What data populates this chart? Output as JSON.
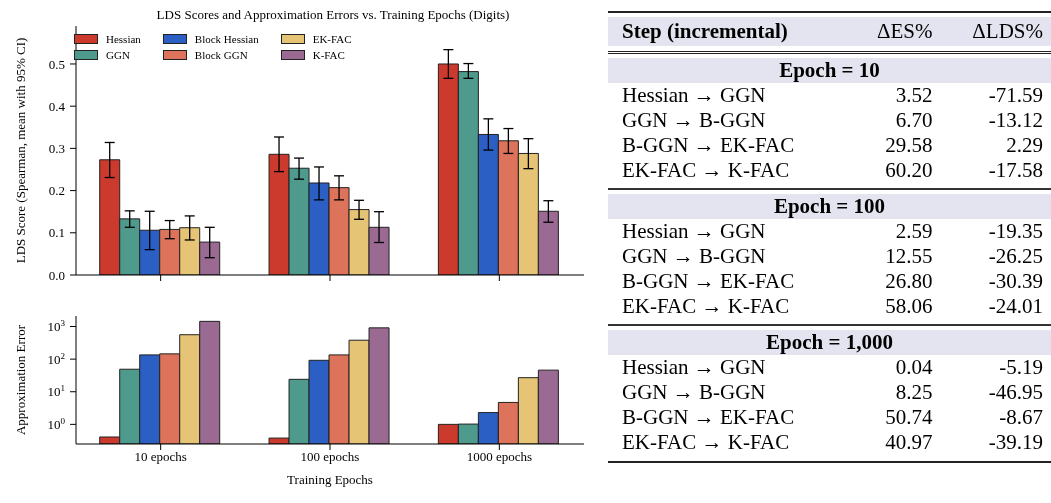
{
  "chart_data": [
    {
      "type": "bar",
      "title": "LDS Scores and Approximation Errors vs. Training Epochs (Digits)",
      "ylabel": "LDS Score (Spearman, mean with 95% CI)",
      "categories": [
        null,
        null,
        null
      ],
      "tick_labels": "y",
      "legend": "top left",
      "ylim": [
        0,
        0.59
      ],
      "yticks": [
        {
          "value": 0,
          "label": "0.0"
        },
        0.1,
        0.2,
        0.3,
        0.4,
        0.5
      ],
      "series": [
        {
          "name": "Hessian",
          "color": "#cc3a2d",
          "values": [
            0.273,
            0.286,
            0.5
          ],
          "errors": [
            [
              0.231,
              0.314
            ],
            [
              0.245,
              0.327
            ],
            [
              0.466,
              0.534
            ]
          ]
        },
        {
          "name": "GGN",
          "color": "#4e9a8c",
          "values": [
            0.133,
            0.253,
            0.482
          ],
          "errors": [
            [
              0.113,
              0.152
            ],
            [
              0.227,
              0.277
            ],
            [
              0.466,
              0.501
            ]
          ]
        },
        {
          "name": "Block Hessian",
          "color": "#2b5fc4",
          "values": [
            0.106,
            0.218,
            0.333
          ],
          "errors": [
            [
              0.06,
              0.151
            ],
            [
              0.178,
              0.256
            ],
            [
              0.296,
              0.37
            ]
          ]
        },
        {
          "name": "Block GGN",
          "color": "#dd735a",
          "values": [
            0.108,
            0.207,
            0.318
          ],
          "errors": [
            [
              0.086,
              0.129
            ],
            [
              0.178,
              0.235
            ],
            [
              0.288,
              0.347
            ]
          ]
        },
        {
          "name": "EK-FAC",
          "color": "#e6c476",
          "values": [
            0.112,
            0.155,
            0.288
          ],
          "errors": [
            [
              0.083,
              0.14
            ],
            [
              0.132,
              0.177
            ],
            [
              0.252,
              0.323
            ]
          ]
        },
        {
          "name": "K-FAC",
          "color": "#9a6a93",
          "values": [
            0.078,
            0.113,
            0.151
          ],
          "errors": [
            [
              0.041,
              0.113
            ],
            [
              0.077,
              0.15
            ],
            [
              0.125,
              0.176
            ]
          ]
        }
      ]
    },
    {
      "type": "bar",
      "ylabel": "Approximation Error",
      "xlabel": "Training Epochs",
      "categories": [
        "10 epochs",
        "100 epochs",
        "1000 epochs"
      ],
      "log": true,
      "ylim": [
        0.25,
        2100
      ],
      "yticks": [
        {
          "value": 1,
          "label": "10$^{0}$"
        },
        {
          "value": 10,
          "label": "10$^{1}$"
        },
        {
          "value": 100,
          "label": "10$^{2}$"
        },
        {
          "value": 1000,
          "label": "10$^{3}$"
        }
      ],
      "series": [
        {
          "color": "#cc3a2d",
          "values": [
            0.41,
            0.38,
            1.0
          ]
        },
        {
          "color": "#4e9a8c",
          "values": [
            49,
            24,
            1.02
          ]
        },
        {
          "color": "#2b5fc4",
          "values": [
            135,
            92,
            2.3
          ]
        },
        {
          "color": "#dd735a",
          "values": [
            145,
            135,
            4.7
          ]
        },
        {
          "color": "#e6c476",
          "values": [
            560,
            380,
            27
          ]
        },
        {
          "color": "#9a6a93",
          "values": [
            1440,
            910,
            46
          ]
        }
      ]
    },
    {
      "type": "other",
      "annotations": [
        "Step (incremental)",
        "ΔES%",
        "ΔLDS%",
        "Epoch = 10",
        "Hessian → GGN",
        "3.52",
        "-71.59",
        "GGN → B-GGN",
        "6.70",
        "-13.12",
        "B-GGN → EK-FAC",
        "29.58",
        "2.29",
        "EK-FAC → K-FAC",
        "60.20",
        "-17.58",
        "Epoch = 100",
        "Hessian → GGN",
        "2.59",
        "-19.35",
        "GGN → B-GGN",
        "12.55",
        "-26.25",
        "B-GGN → EK-FAC",
        "26.80",
        "-30.39",
        "EK-FAC → K-FAC",
        "58.06",
        "-24.01",
        "Epoch = 1,000",
        "Hessian → GGN",
        "0.04",
        "-5.19",
        "GGN → B-GGN",
        "8.25",
        "-46.95",
        "B-GGN → EK-FAC",
        "50.74",
        "-8.67",
        "EK-FAC → K-FAC",
        "40.97",
        "-39.19"
      ]
    }
  ]
}
